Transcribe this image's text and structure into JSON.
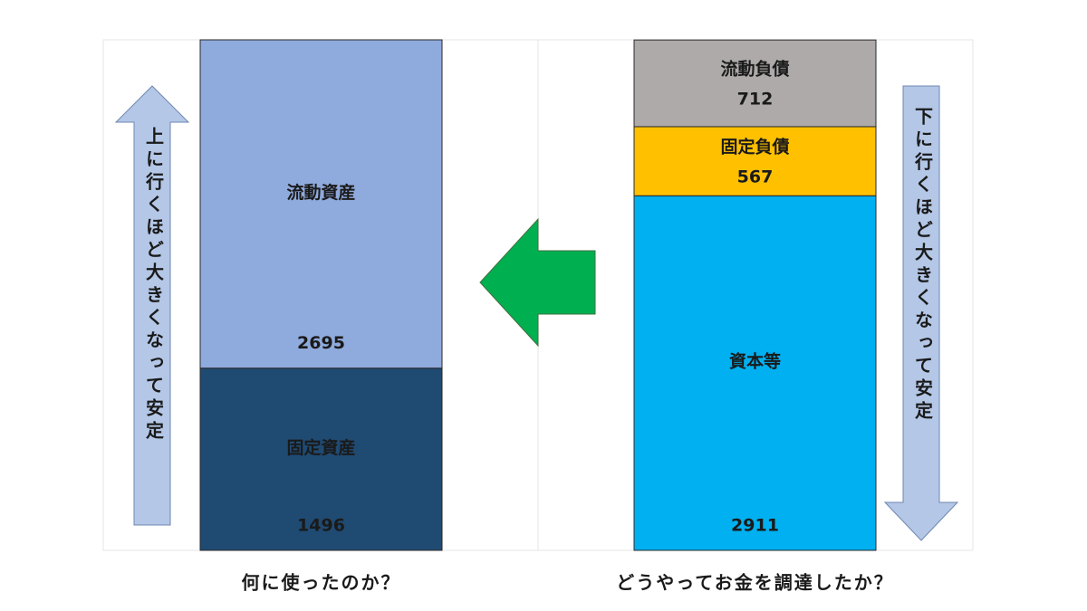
{
  "chart_data": {
    "type": "bar",
    "stacked": true,
    "categories": [
      "何に使ったのか？",
      "どうやってお金を調達したか？"
    ],
    "series": [
      {
        "name": "固定資産",
        "color": "#1f4a72",
        "values": [
          1496,
          null
        ]
      },
      {
        "name": "流動資産",
        "color": "#8faadc",
        "values": [
          2695,
          null
        ]
      },
      {
        "name": "資本等",
        "color": "#00b0f0",
        "values": [
          null,
          2911
        ]
      },
      {
        "name": "固定負債",
        "color": "#ffc000",
        "values": [
          null,
          567
        ]
      },
      {
        "name": "流動負債",
        "color": "#aeaaaa",
        "values": [
          null,
          712
        ]
      }
    ],
    "annotations": [
      "上に行くほど大きくなって安定",
      "下に行くほど大きくなって安定"
    ]
  }
}
